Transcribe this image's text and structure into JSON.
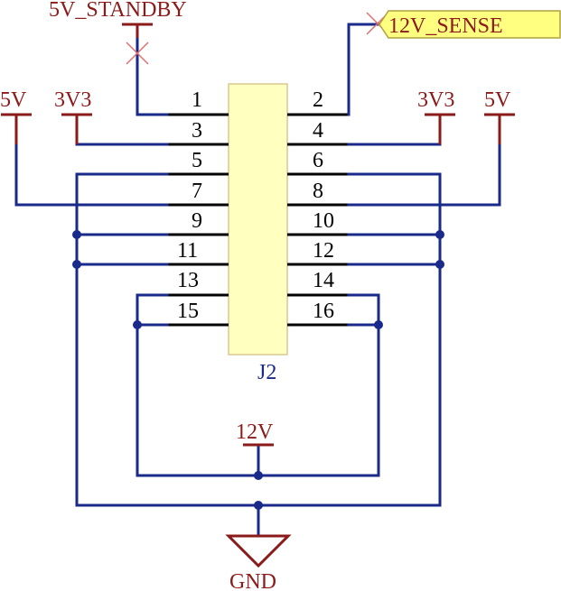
{
  "connector": {
    "refdes": "J2",
    "body_color": "#ffffc0",
    "pins_left": [
      "1",
      "3",
      "5",
      "7",
      "9",
      "11",
      "13",
      "15"
    ],
    "pins_right": [
      "2",
      "4",
      "6",
      "8",
      "10",
      "12",
      "14",
      "16"
    ]
  },
  "nets": {
    "standby": "5V_STANDBY",
    "sense": "12V_SENSE",
    "left_5v": "5V",
    "left_3v3": "3V3",
    "right_3v3": "3V3",
    "right_5v": "5V",
    "v12": "12V",
    "gnd": "GND"
  },
  "colors": {
    "wire": "#1a2a8a",
    "power_symbol": "#8b1a1a",
    "net_label_fill": "#ffff80"
  }
}
